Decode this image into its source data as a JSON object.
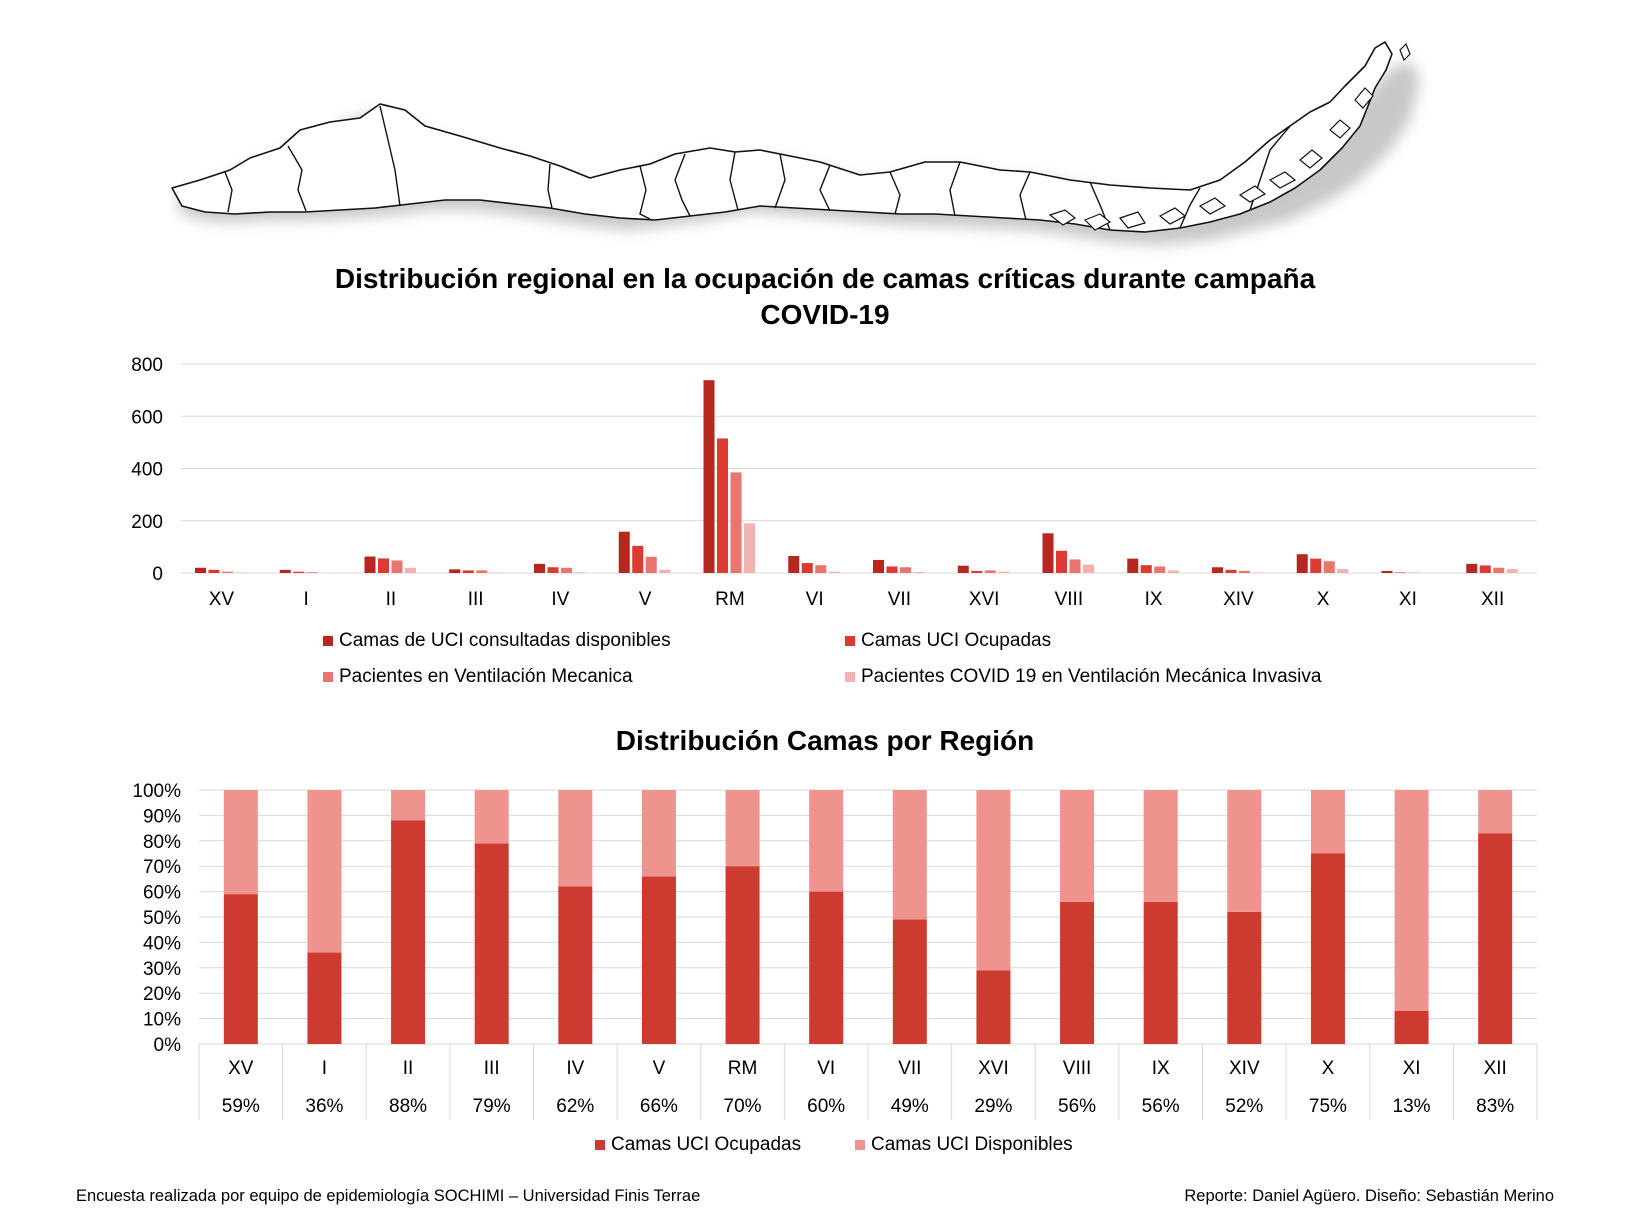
{
  "colors": {
    "dark_red": "#b5271f",
    "red": "#dc3a32",
    "salmon": "#e8766e",
    "pink": "#f2b3b0",
    "occupied": "#cd3a30",
    "available": "#ee938e",
    "grid": "#d9d9d9"
  },
  "chart_data": [
    {
      "type": "bar",
      "title": "Distribución regional en la ocupación de camas críticas durante campaña COVID-19",
      "title_line1": "Distribución regional en la ocupación de camas críticas durante campaña",
      "title_line2": "COVID-19",
      "categories": [
        "XV",
        "I",
        "II",
        "III",
        "IV",
        "V",
        "RM",
        "VI",
        "VII",
        "XVI",
        "VIII",
        "IX",
        "XIV",
        "X",
        "XI",
        "XII"
      ],
      "ylim": [
        0,
        800
      ],
      "yticks": [
        "0",
        "200",
        "400",
        "600",
        "800"
      ],
      "grid": true,
      "legend_position": "bottom",
      "series": [
        {
          "name": "Camas de UCI consultadas disponibles",
          "color_key": "dark_red",
          "values": [
            20,
            12,
            63,
            14,
            35,
            158,
            738,
            65,
            50,
            28,
            152,
            55,
            22,
            72,
            8,
            35
          ]
        },
        {
          "name": "Camas UCI Ocupadas",
          "color_key": "red",
          "values": [
            12,
            5,
            56,
            10,
            22,
            104,
            515,
            38,
            25,
            8,
            85,
            30,
            12,
            55,
            2,
            29
          ]
        },
        {
          "name": "Pacientes en Ventilación Mecanica",
          "color_key": "salmon",
          "values": [
            5,
            3,
            48,
            10,
            20,
            62,
            385,
            30,
            22,
            10,
            52,
            25,
            8,
            45,
            1,
            20
          ]
        },
        {
          "name": "Pacientes COVID 19 en Ventilación Mecánica Invasiva",
          "color_key": "pink",
          "values": [
            2,
            1,
            20,
            2,
            3,
            12,
            190,
            5,
            4,
            5,
            32,
            10,
            2,
            15,
            0,
            15
          ]
        }
      ]
    },
    {
      "type": "bar",
      "stacked": true,
      "title": "Distribución Camas por Región",
      "categories": [
        "XV",
        "I",
        "II",
        "III",
        "IV",
        "V",
        "RM",
        "VI",
        "VII",
        "XVI",
        "VIII",
        "IX",
        "XIV",
        "X",
        "XI",
        "XII"
      ],
      "ylim": [
        0,
        100
      ],
      "yticks": [
        "0%",
        "10%",
        "20%",
        "30%",
        "40%",
        "50%",
        "60%",
        "70%",
        "80%",
        "90%",
        "100%"
      ],
      "grid": true,
      "legend_position": "bottom",
      "table_row": [
        "59%",
        "36%",
        "88%",
        "79%",
        "62%",
        "66%",
        "70%",
        "60%",
        "49%",
        "29%",
        "56%",
        "56%",
        "52%",
        "75%",
        "13%",
        "83%"
      ],
      "series": [
        {
          "name": "Camas UCI Ocupadas",
          "color_key": "occupied",
          "values": [
            59,
            36,
            88,
            79,
            62,
            66,
            70,
            60,
            49,
            29,
            56,
            56,
            52,
            75,
            13,
            83
          ]
        },
        {
          "name": "Camas UCI Disponibles",
          "color_key": "available",
          "values": [
            41,
            64,
            12,
            21,
            38,
            34,
            30,
            40,
            51,
            71,
            44,
            44,
            48,
            25,
            87,
            17
          ]
        }
      ]
    }
  ],
  "footer": {
    "left": "Encuesta realizada por equipo de epidemiología SOCHIMI – Universidad Finis Terrae",
    "right": "Reporte: Daniel Agüero. Diseño: Sebastián Merino"
  }
}
